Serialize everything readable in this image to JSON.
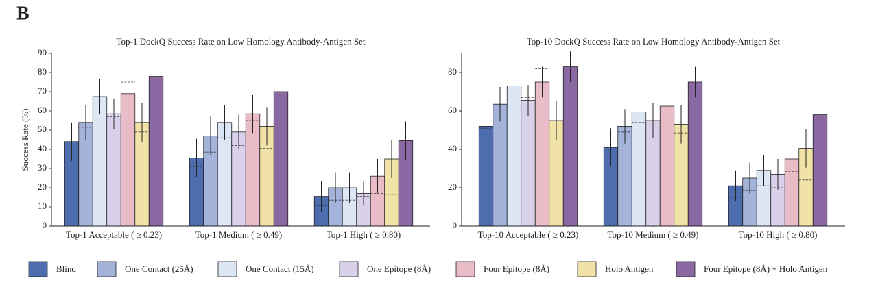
{
  "panel_label": "B",
  "chart_data": [
    {
      "type": "bar",
      "title": "Top-1 DockQ Success Rate on Low Homology Antibody-Antigen Set",
      "ylabel": "Success Rate (%)",
      "categories": [
        "Top-1 Acceptable ( ≥ 0.23)",
        "Top-1 Medium ( ≥ 0.49)",
        "Top-1 High ( ≥ 0.80)"
      ],
      "ylim": [
        0,
        90
      ],
      "yticks": [
        0,
        10,
        20,
        30,
        40,
        50,
        60,
        70,
        80,
        90
      ],
      "series": [
        {
          "name": "Blind",
          "color": "#4d6dae",
          "values": [
            44,
            35.5,
            15.5
          ],
          "errors": [
            10,
            10,
            8
          ],
          "ref_values": [
            null,
            31,
            10.5
          ]
        },
        {
          "name": "One Contact (25Å)",
          "color": "#a3b3d9",
          "values": [
            54,
            47,
            20
          ],
          "errors": [
            9,
            10,
            8
          ],
          "ref_values": [
            51.5,
            38.5,
            13.5
          ]
        },
        {
          "name": "One Contact (15Å)",
          "color": "#dce6f5",
          "values": [
            67.5,
            54,
            20
          ],
          "errors": [
            9,
            9,
            8
          ],
          "ref_values": [
            60.5,
            46,
            13.5
          ]
        },
        {
          "name": "One Epitope (8Å)",
          "color": "#d9d1e9",
          "values": [
            58.5,
            49,
            17
          ],
          "errors": [
            8,
            9,
            6
          ],
          "ref_values": [
            57,
            42,
            15.5
          ]
        },
        {
          "name": "Four Epitope (8Å)",
          "color": "#eabcc7",
          "values": [
            69,
            58.5,
            26
          ],
          "errors": [
            9,
            10,
            9
          ],
          "ref_values": [
            75,
            55,
            17
          ]
        },
        {
          "name": "Holo Antigen",
          "color": "#f1e3a8",
          "values": [
            54,
            52,
            35
          ],
          "errors": [
            10,
            10,
            10
          ],
          "ref_values": [
            49,
            40.5,
            16.5
          ]
        },
        {
          "name": "Four Epitope (8Å) + Holo Antigen",
          "color": "#8a68a2",
          "values": [
            78,
            70,
            44.5
          ],
          "errors": [
            8,
            9,
            10
          ],
          "ref_values": [
            null,
            null,
            null
          ]
        }
      ]
    },
    {
      "type": "bar",
      "title": "Top-10 DockQ Success Rate on Low Homology Antibody-Antigen Set",
      "categories": [
        "Top-10 Acceptable ( ≥ 0.23)",
        "Top-10 Medium ( ≥ 0.49)",
        "Top-10 High ( ≥ 0.80)"
      ],
      "ylim": [
        0,
        90
      ],
      "yticks": [
        0,
        20,
        40,
        60,
        80
      ],
      "series": [
        {
          "name": "Blind",
          "color": "#4d6dae",
          "values": [
            52,
            41,
            21
          ],
          "errors": [
            10,
            10,
            8
          ],
          "ref_values": [
            51,
            null,
            15
          ]
        },
        {
          "name": "One Contact (25Å)",
          "color": "#a3b3d9",
          "values": [
            63.5,
            52,
            25
          ],
          "errors": [
            9,
            9,
            8
          ],
          "ref_values": [
            null,
            49,
            18.5
          ]
        },
        {
          "name": "One Contact (15Å)",
          "color": "#dce6f5",
          "values": [
            73,
            59.5,
            29
          ],
          "errors": [
            9,
            10,
            8
          ],
          "ref_values": [
            null,
            54,
            21
          ]
        },
        {
          "name": "One Epitope (8Å)",
          "color": "#d9d1e9",
          "values": [
            65.5,
            55,
            27
          ],
          "errors": [
            8,
            9,
            8
          ],
          "ref_values": [
            67,
            47,
            20
          ]
        },
        {
          "name": "Four Epitope (8Å)",
          "color": "#eabcc7",
          "values": [
            75,
            62.5,
            35
          ],
          "errors": [
            8,
            10,
            10
          ],
          "ref_values": [
            82,
            null,
            28.5
          ]
        },
        {
          "name": "Holo Antigen",
          "color": "#f1e3a8",
          "values": [
            55,
            53,
            40.5
          ],
          "errors": [
            10,
            10,
            10
          ],
          "ref_values": [
            null,
            48.5,
            24
          ]
        },
        {
          "name": "Four Epitope (8Å) + Holo Antigen",
          "color": "#8a68a2",
          "values": [
            83,
            75,
            58
          ],
          "errors": [
            8,
            8,
            10
          ],
          "ref_values": [
            null,
            null,
            null
          ]
        }
      ]
    }
  ]
}
